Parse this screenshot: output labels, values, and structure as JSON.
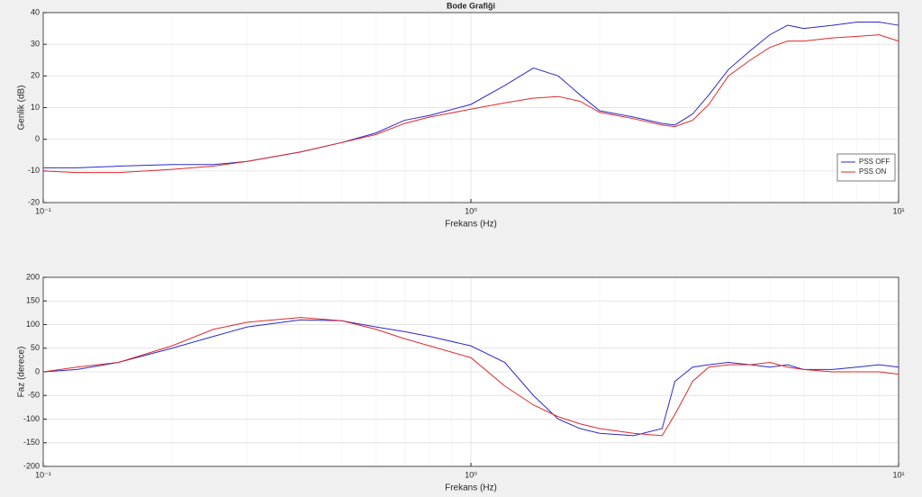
{
  "chart_data": [
    {
      "type": "line",
      "title": "Bode Grafiği",
      "xlabel": "Frekans (Hz)",
      "ylabel": "Genlik (dB)",
      "xscale": "log",
      "grid": true,
      "legend": "lower right",
      "xlim": [
        0.1,
        10
      ],
      "xticks": [
        {
          "value": 0.1,
          "label": "10⁻¹"
        },
        {
          "value": 1,
          "label": "10⁰"
        },
        {
          "value": 10,
          "label": "10¹"
        }
      ],
      "ylim": [
        -20,
        40
      ],
      "yticks": [
        -20,
        -10,
        0,
        10,
        20,
        30,
        40
      ],
      "x": [
        0.1,
        0.12,
        0.15,
        0.2,
        0.25,
        0.3,
        0.4,
        0.5,
        0.6,
        0.7,
        0.8,
        1.0,
        1.2,
        1.4,
        1.6,
        1.8,
        2.0,
        2.4,
        2.8,
        3.0,
        3.3,
        3.6,
        4.0,
        4.5,
        5.0,
        5.5,
        6.0,
        7.0,
        8.0,
        9.0,
        10
      ],
      "series": [
        {
          "name": "PSS OFF",
          "color": "#2a2acc",
          "values": [
            -9,
            -9,
            -8.5,
            -8,
            -8,
            -7,
            -4,
            -1,
            2,
            6,
            7.5,
            11,
            17,
            22.5,
            20,
            14,
            9,
            7,
            5,
            4.5,
            8,
            14,
            22,
            28,
            33,
            36,
            35,
            36,
            37,
            37,
            36
          ]
        },
        {
          "name": "PSS ON",
          "color": "#dd2a2a",
          "values": [
            -10,
            -10.5,
            -10.5,
            -9.5,
            -8.5,
            -7,
            -4,
            -1,
            1.5,
            5,
            7,
            9.5,
            11.5,
            13,
            13.5,
            12,
            8.5,
            6.5,
            4.5,
            4,
            6,
            11,
            20,
            25,
            29,
            31,
            31,
            32,
            32.5,
            33,
            31
          ]
        }
      ]
    },
    {
      "type": "line",
      "xlabel": "Frekans (Hz)",
      "ylabel": "Faz (derece)",
      "xscale": "log",
      "grid": true,
      "xlim": [
        0.1,
        10
      ],
      "xticks": [
        {
          "value": 0.1,
          "label": "10⁻¹"
        },
        {
          "value": 1,
          "label": "10⁰"
        },
        {
          "value": 10,
          "label": "10¹"
        }
      ],
      "ylim": [
        -200,
        200
      ],
      "yticks": [
        -200,
        -150,
        -100,
        -50,
        0,
        50,
        100,
        150,
        200
      ],
      "x": [
        0.1,
        0.12,
        0.15,
        0.2,
        0.25,
        0.3,
        0.4,
        0.5,
        0.6,
        0.7,
        0.8,
        1.0,
        1.2,
        1.4,
        1.6,
        1.8,
        2.0,
        2.4,
        2.8,
        3.0,
        3.3,
        3.6,
        4.0,
        4.5,
        5.0,
        5.5,
        6.0,
        7.0,
        8.0,
        9.0,
        10
      ],
      "series": [
        {
          "name": "PSS OFF",
          "color": "#2a2acc",
          "values": [
            0,
            5,
            20,
            50,
            75,
            95,
            110,
            108,
            95,
            85,
            75,
            55,
            20,
            -50,
            -100,
            -120,
            -130,
            -135,
            -120,
            -20,
            10,
            15,
            20,
            15,
            10,
            15,
            5,
            5,
            10,
            15,
            10
          ]
        },
        {
          "name": "PSS ON",
          "color": "#dd2a2a",
          "values": [
            0,
            10,
            20,
            55,
            90,
            105,
            115,
            108,
            90,
            70,
            55,
            30,
            -30,
            -70,
            -95,
            -110,
            -120,
            -130,
            -135,
            -90,
            -20,
            10,
            15,
            15,
            20,
            10,
            5,
            0,
            0,
            0,
            -5
          ]
        }
      ]
    }
  ]
}
